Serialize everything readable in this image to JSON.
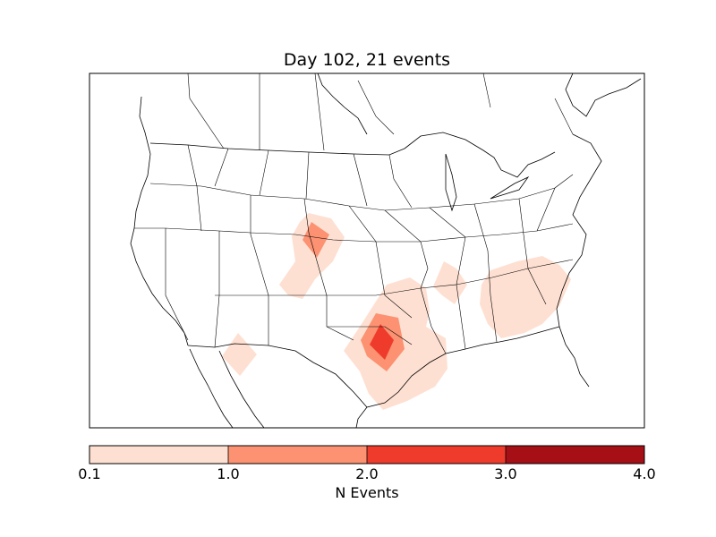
{
  "title": "Day 102, 21 events",
  "colorbar": {
    "label": "N Events",
    "ticks": [
      "0.1",
      "1.0",
      "2.0",
      "3.0",
      "4.0"
    ],
    "colors": [
      "#fee0d2",
      "#fc9272",
      "#ef3b2c",
      "#a50f15"
    ]
  },
  "map": {
    "region": "North America",
    "event_color_low": "#fee0d2",
    "event_color_mid": "#fc9272",
    "event_color_high": "#ef3b2c"
  }
}
